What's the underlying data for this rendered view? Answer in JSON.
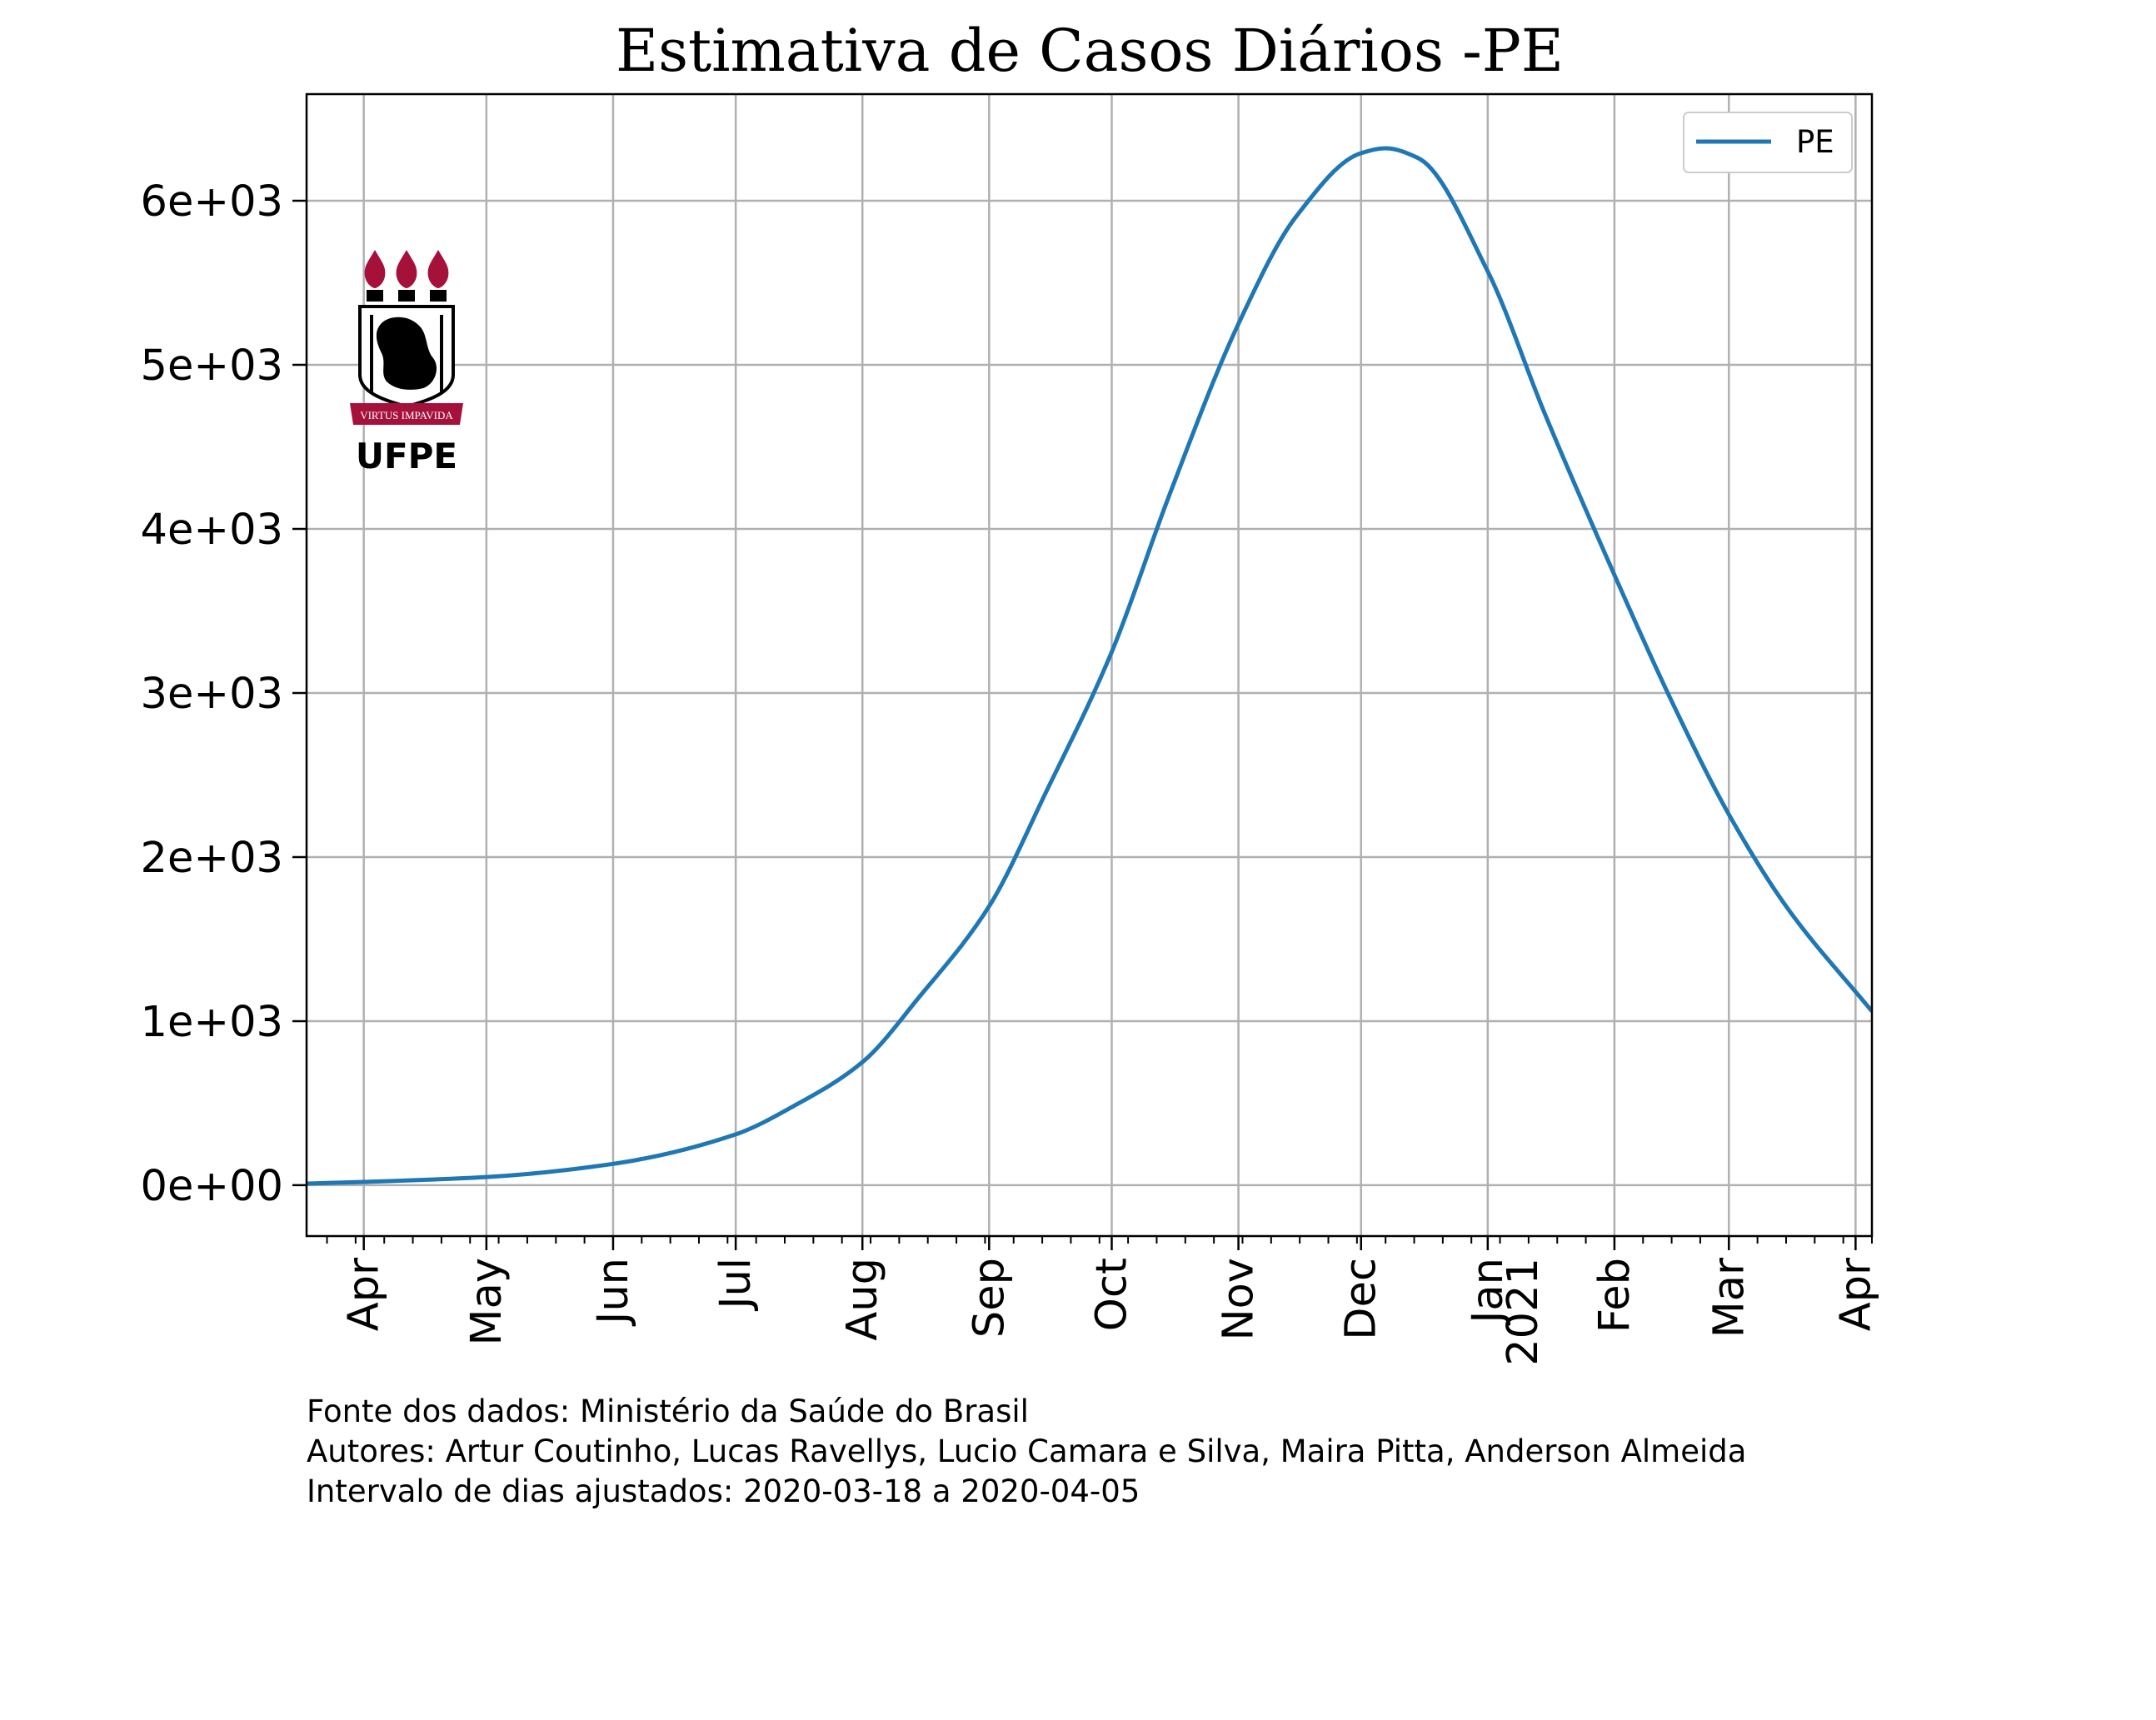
{
  "chart_data": {
    "type": "line",
    "title": "Estimativa de Casos Diários -PE",
    "xlabel": "",
    "ylabel": "",
    "x_axis": "date",
    "xlim": [
      "2020-03-18",
      "2021-04-05"
    ],
    "ylim": [
      -310,
      6650
    ],
    "grid": true,
    "legend": "top-right",
    "x_ticks": [
      {
        "date": "2020-04-01",
        "label": "Apr"
      },
      {
        "date": "2020-05-01",
        "label": "May"
      },
      {
        "date": "2020-06-01",
        "label": "Jun"
      },
      {
        "date": "2020-07-01",
        "label": "Jul"
      },
      {
        "date": "2020-08-01",
        "label": "Aug"
      },
      {
        "date": "2020-09-01",
        "label": "Sep"
      },
      {
        "date": "2020-10-01",
        "label": "Oct"
      },
      {
        "date": "2020-11-01",
        "label": "Nov"
      },
      {
        "date": "2020-12-01",
        "label": "Dec"
      },
      {
        "date": "2021-01-01",
        "label": "Jan",
        "label2": "2021"
      },
      {
        "date": "2021-02-01",
        "label": "Feb"
      },
      {
        "date": "2021-03-01",
        "label": "Mar"
      },
      {
        "date": "2021-04-01",
        "label": "Apr"
      }
    ],
    "y_ticks": [
      {
        "value": 0,
        "label": "0e+00"
      },
      {
        "value": 1000,
        "label": "1e+03"
      },
      {
        "value": 2000,
        "label": "2e+03"
      },
      {
        "value": 3000,
        "label": "3e+03"
      },
      {
        "value": 4000,
        "label": "4e+03"
      },
      {
        "value": 5000,
        "label": "5e+03"
      },
      {
        "value": 6000,
        "label": "6e+03"
      }
    ],
    "series": [
      {
        "name": "PE",
        "color": "#1f77b4",
        "x": [
          "2020-03-18",
          "2020-04-01",
          "2020-05-01",
          "2020-06-01",
          "2020-07-01",
          "2020-07-15",
          "2020-08-01",
          "2020-08-15",
          "2020-09-01",
          "2020-09-15",
          "2020-10-01",
          "2020-10-15",
          "2020-11-01",
          "2020-11-15",
          "2020-12-01",
          "2020-12-07",
          "2020-12-15",
          "2021-01-01",
          "2021-01-15",
          "2021-02-01",
          "2021-02-15",
          "2021-03-01",
          "2021-03-15",
          "2021-04-05"
        ],
        "values": [
          10,
          20,
          50,
          130,
          310,
          480,
          750,
          1150,
          1700,
          2400,
          3250,
          4200,
          5250,
          5900,
          6290,
          6320,
          6260,
          5570,
          4700,
          3720,
          2950,
          2260,
          1700,
          1060
        ]
      }
    ]
  },
  "logo": {
    "motto": "VIRTUS IMPAVIDA",
    "name": "UFPE",
    "colors": {
      "flame": "#a6113c",
      "ink": "#000000"
    }
  },
  "credits": {
    "source": "Fonte dos dados: Ministério da Saúde do Brasil",
    "authors": "Autores: Artur Coutinho, Lucas Ravellys, Lucio Camara e Silva, Maira Pitta, Anderson Almeida",
    "interval": "Intervalo de dias ajustados: 2020-03-18 a 2020-04-05"
  }
}
